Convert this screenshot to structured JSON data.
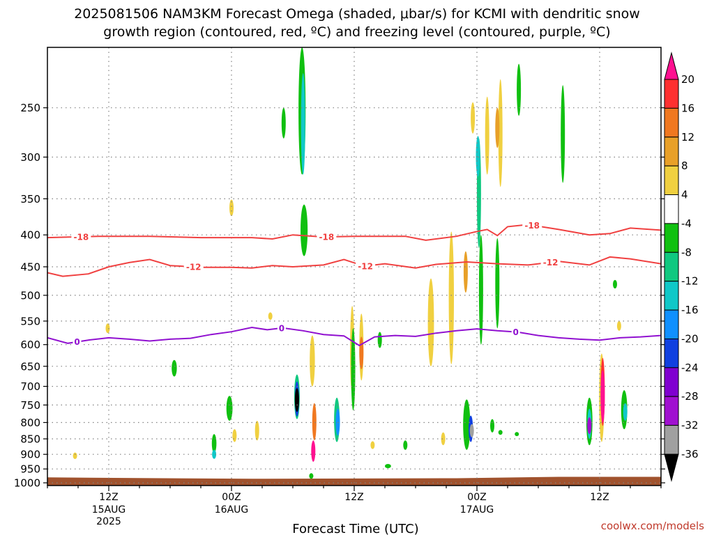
{
  "chart_data": {
    "type": "heatmap",
    "title_line1": "2025081506 NAM3KM Forecast Omega (shaded, μbar/s) for KCMI with dendritic snow",
    "title_line2": "growth region (contoured, red, ºC) and freezing level (contoured, purple, ºC)",
    "xlabel": "Forecast Time (UTC)",
    "credit": "coolwx.com/models",
    "x_ticks": [
      {
        "hour": 6,
        "label": "12Z",
        "sub": "15AUG",
        "sub2": "2025"
      },
      {
        "hour": 18,
        "label": "00Z",
        "sub": "16AUG",
        "sub2": ""
      },
      {
        "hour": 30,
        "label": "12Z",
        "sub": "",
        "sub2": ""
      },
      {
        "hour": 42,
        "label": "00Z",
        "sub": "17AUG",
        "sub2": ""
      },
      {
        "hour": 54,
        "label": "12Z",
        "sub": "",
        "sub2": ""
      }
    ],
    "x_range_hours": [
      0,
      60
    ],
    "y_ticks": [
      "250",
      "300",
      "350",
      "400",
      "450",
      "500",
      "550",
      "600",
      "650",
      "700",
      "750",
      "800",
      "850",
      "900",
      "950",
      "1000"
    ],
    "y_range_hpa": [
      200,
      1010
    ],
    "y_scale": "log-pressure",
    "grid": true,
    "colorbar": {
      "labels": [
        "20",
        "16",
        "12",
        "8",
        "4",
        "-4",
        "-8",
        "-12",
        "-16",
        "-20",
        "-24",
        "-28",
        "-32",
        "-36"
      ],
      "colors": [
        "#ff1090",
        "#ff3030",
        "#f07820",
        "#e8a028",
        "#f0d040",
        "#ffffff",
        "#10c010",
        "#10c880",
        "#10c8c8",
        "#1090ff",
        "#1040e0",
        "#8000d0",
        "#a010d0",
        "#a0a0a0",
        "#000000"
      ]
    },
    "omega_blobs": [
      {
        "t": 2.7,
        "p": 905,
        "wt": 0.12,
        "hp": 22,
        "v": 4
      },
      {
        "t": 5.9,
        "p": 565,
        "wt": 0.25,
        "hp": 20,
        "v": 4
      },
      {
        "t": 12.4,
        "p": 655,
        "wt": 0.5,
        "hp": 40,
        "v": -5
      },
      {
        "t": 16.3,
        "p": 865,
        "wt": 0.45,
        "hp": 60,
        "v": -6
      },
      {
        "t": 16.3,
        "p": 900,
        "wt": 0.3,
        "hp": 30,
        "v": -12
      },
      {
        "t": 17.8,
        "p": 760,
        "wt": 0.6,
        "hp": 70,
        "v": -6
      },
      {
        "t": 18.3,
        "p": 840,
        "wt": 0.4,
        "hp": 40,
        "v": 4
      },
      {
        "t": 20.5,
        "p": 825,
        "wt": 0.4,
        "hp": 60,
        "v": 4
      },
      {
        "t": 18.0,
        "p": 362,
        "wt": 0.15,
        "hp": 22,
        "v": 4
      },
      {
        "t": 21.8,
        "p": 540,
        "wt": 0.08,
        "hp": 15,
        "v": 4
      },
      {
        "t": 23.1,
        "p": 265,
        "wt": 0.35,
        "hp": 30,
        "v": -5
      },
      {
        "t": 24.9,
        "p": 250,
        "wt": 0.7,
        "hp": 140,
        "v": -6
      },
      {
        "t": 25.0,
        "p": 270,
        "wt": 0.4,
        "hp": 100,
        "v": -14
      },
      {
        "t": 25.1,
        "p": 395,
        "wt": 0.7,
        "hp": 75,
        "v": -6
      },
      {
        "t": 24.4,
        "p": 730,
        "wt": 0.55,
        "hp": 120,
        "v": -10
      },
      {
        "t": 24.4,
        "p": 735,
        "wt": 0.4,
        "hp": 95,
        "v": -20
      },
      {
        "t": 24.4,
        "p": 737,
        "wt": 0.22,
        "hp": 65,
        "v": -38
      },
      {
        "t": 25.9,
        "p": 640,
        "wt": 0.5,
        "hp": 120,
        "v": 4
      },
      {
        "t": 26.1,
        "p": 800,
        "wt": 0.4,
        "hp": 110,
        "v": 12
      },
      {
        "t": 26.0,
        "p": 890,
        "wt": 0.32,
        "hp": 70,
        "v": 22
      },
      {
        "t": 25.8,
        "p": 975,
        "wt": 0.3,
        "hp": 20,
        "v": -6
      },
      {
        "t": 28.3,
        "p": 795,
        "wt": 0.55,
        "hp": 130,
        "v": -8
      },
      {
        "t": 28.4,
        "p": 800,
        "wt": 0.3,
        "hp": 80,
        "v": -18
      },
      {
        "t": 29.8,
        "p": 620,
        "wt": 0.3,
        "hp": 200,
        "v": 4
      },
      {
        "t": 30.7,
        "p": 610,
        "wt": 0.3,
        "hp": 150,
        "v": 4
      },
      {
        "t": 30.7,
        "p": 620,
        "wt": 0.2,
        "hp": 75,
        "v": 12
      },
      {
        "t": 29.9,
        "p": 665,
        "wt": 0.3,
        "hp": 200,
        "v": -5
      },
      {
        "t": 31.8,
        "p": 870,
        "wt": 0.15,
        "hp": 25,
        "v": 4
      },
      {
        "t": 32.5,
        "p": 590,
        "wt": 0.25,
        "hp": 35,
        "v": -5
      },
      {
        "t": 33.3,
        "p": 940,
        "wt": 0.6,
        "hp": 15,
        "v": -5
      },
      {
        "t": 35.0,
        "p": 870,
        "wt": 0.2,
        "hp": 30,
        "v": -5
      },
      {
        "t": 37.5,
        "p": 560,
        "wt": 0.6,
        "hp": 180,
        "v": 4
      },
      {
        "t": 39.5,
        "p": 520,
        "wt": 0.5,
        "hp": 250,
        "v": 4
      },
      {
        "t": 40.9,
        "p": 460,
        "wt": 0.3,
        "hp": 70,
        "v": 8
      },
      {
        "t": 38.7,
        "p": 850,
        "wt": 0.25,
        "hp": 40,
        "v": 4
      },
      {
        "t": 41.0,
        "p": 810,
        "wt": 0.7,
        "hp": 150,
        "v": -7
      },
      {
        "t": 41.4,
        "p": 820,
        "wt": 0.42,
        "hp": 80,
        "v": -20
      },
      {
        "t": 41.5,
        "p": 825,
        "wt": 0.22,
        "hp": 40,
        "v": -32
      },
      {
        "t": 41.6,
        "p": 260,
        "wt": 0.2,
        "hp": 30,
        "v": 4
      },
      {
        "t": 42.2,
        "p": 350,
        "wt": 0.35,
        "hp": 140,
        "v": -8
      },
      {
        "t": 42.4,
        "p": 500,
        "wt": 0.2,
        "hp": 200,
        "v": -6
      },
      {
        "t": 42.1,
        "p": 300,
        "wt": 0.25,
        "hp": 45,
        "v": -14
      },
      {
        "t": 43.0,
        "p": 280,
        "wt": 0.2,
        "hp": 80,
        "v": 4
      },
      {
        "t": 44.3,
        "p": 280,
        "wt": 0.35,
        "hp": 110,
        "v": 4
      },
      {
        "t": 44.0,
        "p": 270,
        "wt": 0.15,
        "hp": 40,
        "v": 8
      },
      {
        "t": 44.0,
        "p": 485,
        "wt": 0.35,
        "hp": 160,
        "v": -5
      },
      {
        "t": 43.5,
        "p": 810,
        "wt": 0.3,
        "hp": 40,
        "v": -6
      },
      {
        "t": 44.3,
        "p": 830,
        "wt": 0.15,
        "hp": 15,
        "v": -7
      },
      {
        "t": 45.9,
        "p": 835,
        "wt": 0.2,
        "hp": 10,
        "v": -6
      },
      {
        "t": 46.1,
        "p": 235,
        "wt": 0.2,
        "hp": 45,
        "v": -5
      },
      {
        "t": 50.4,
        "p": 280,
        "wt": 0.3,
        "hp": 100,
        "v": -6
      },
      {
        "t": 53.0,
        "p": 800,
        "wt": 0.6,
        "hp": 140,
        "v": -7
      },
      {
        "t": 53.0,
        "p": 805,
        "wt": 0.35,
        "hp": 90,
        "v": -15
      },
      {
        "t": 53.0,
        "p": 810,
        "wt": 0.2,
        "hp": 50,
        "v": -30
      },
      {
        "t": 54.2,
        "p": 740,
        "wt": 0.5,
        "hp": 240,
        "v": 4
      },
      {
        "t": 54.3,
        "p": 720,
        "wt": 0.32,
        "hp": 180,
        "v": 16
      },
      {
        "t": 54.3,
        "p": 730,
        "wt": 0.22,
        "hp": 140,
        "v": 22
      },
      {
        "t": 55.9,
        "p": 560,
        "wt": 0.1,
        "hp": 20,
        "v": 4
      },
      {
        "t": 55.5,
        "p": 480,
        "wt": 0.08,
        "hp": 15,
        "v": -5
      },
      {
        "t": 56.4,
        "p": 765,
        "wt": 0.6,
        "hp": 110,
        "v": -6
      },
      {
        "t": 56.5,
        "p": 770,
        "wt": 0.3,
        "hp": 50,
        "v": -12
      }
    ],
    "contours": [
      {
        "name": "-18",
        "color": "#f04040",
        "label": "-18",
        "label_at": [
          3.3,
          27.3,
          47.4
        ],
        "t": [
          0,
          5,
          10,
          15,
          20,
          22,
          24,
          27,
          30,
          35,
          37,
          40,
          42,
          43,
          44,
          45,
          47,
          50,
          53,
          55,
          57,
          60
        ],
        "p": [
          404,
          402,
          402,
          404,
          404,
          406,
          400,
          403,
          402,
          402,
          408,
          402,
          395,
          392,
          401,
          388,
          385,
          392,
          400,
          398,
          390,
          393
        ]
      },
      {
        "name": "-12",
        "color": "#f04040",
        "label": "-12",
        "label_at": [
          14.3,
          31.1,
          49.2
        ],
        "t": [
          0,
          1.5,
          4,
          6,
          8,
          10,
          12,
          15,
          18,
          20,
          22,
          24,
          27,
          29,
          31,
          33,
          36,
          38,
          41,
          44,
          47,
          50,
          53,
          55,
          57,
          60
        ],
        "p": [
          460,
          466,
          462,
          450,
          443,
          438,
          448,
          451,
          451,
          452,
          448,
          450,
          447,
          438,
          449,
          445,
          452,
          446,
          442,
          445,
          447,
          441,
          447,
          434,
          437,
          445
        ]
      },
      {
        "name": "0",
        "color": "#9010d0",
        "label": "0",
        "label_at": [
          2.9,
          22.9,
          45.8
        ],
        "t": [
          0,
          2,
          4,
          6,
          8,
          10,
          12,
          14,
          16,
          18,
          20,
          21.5,
          23,
          25,
          27,
          29,
          30.5,
          32,
          34,
          36,
          38,
          40,
          42,
          44,
          46,
          48,
          50,
          52,
          54,
          56,
          58,
          60
        ],
        "p": [
          585,
          597,
          590,
          585,
          588,
          592,
          588,
          586,
          578,
          572,
          563,
          568,
          564,
          570,
          578,
          581,
          602,
          583,
          580,
          582,
          575,
          570,
          566,
          570,
          573,
          580,
          585,
          588,
          590,
          585,
          583,
          580
        ]
      }
    ]
  }
}
